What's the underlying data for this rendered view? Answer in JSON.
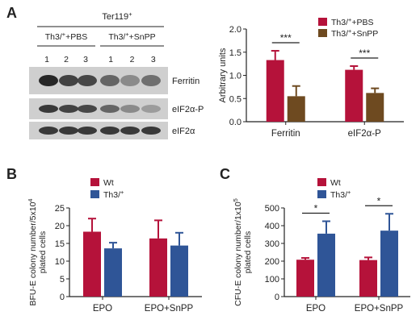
{
  "colors": {
    "red": "#b5123a",
    "brown": "#6e4a20",
    "blue": "#2f5597",
    "axis": "#222222"
  },
  "panelA": {
    "label": "A",
    "blot": {
      "header": "Ter119",
      "header_sup": "+",
      "groups": [
        {
          "pre": "Th3/",
          "sup": "+",
          "post": "+PBS",
          "lanes": [
            "1",
            "2",
            "3"
          ]
        },
        {
          "pre": "Th3/",
          "sup": "+",
          "post": "+SnPP",
          "lanes": [
            "1",
            "2",
            "3"
          ]
        }
      ],
      "rows": [
        {
          "label": "Ferritin",
          "intensity": [
            0.9,
            0.75,
            0.72,
            0.55,
            0.35,
            0.5
          ]
        },
        {
          "label": "eIF2α-P",
          "intensity": [
            0.8,
            0.75,
            0.72,
            0.55,
            0.35,
            0.25
          ]
        },
        {
          "label": "eIF2α",
          "intensity": [
            0.8,
            0.8,
            0.8,
            0.8,
            0.8,
            0.8
          ]
        }
      ]
    }
  },
  "panelB": {
    "label": "B"
  },
  "panelC": {
    "label": "C"
  },
  "chart_data": [
    {
      "id": "A-bar",
      "type": "bar",
      "categories": [
        "Ferritin",
        "eIF2α-P"
      ],
      "series": [
        {
          "name_pre": "Th3/",
          "name_sup": "+",
          "name_post": "+PBS",
          "color": "#b5123a",
          "values": [
            1.33,
            1.12
          ],
          "errors": [
            0.2,
            0.08
          ]
        },
        {
          "name_pre": "Th3/",
          "name_sup": "+",
          "name_post": "+SnPP",
          "color": "#6e4a20",
          "values": [
            0.55,
            0.62
          ],
          "errors": [
            0.22,
            0.1
          ]
        }
      ],
      "ylabel": "Arbitrary units",
      "ylim": [
        0,
        2.0
      ],
      "yticks": [
        "0.0",
        "0.5",
        "1.0",
        "1.5",
        "2.0"
      ],
      "significance": [
        "***",
        "***"
      ],
      "legend": "top-right"
    },
    {
      "id": "B-bar",
      "type": "bar",
      "categories": [
        "EPO",
        "EPO+SnPP"
      ],
      "series": [
        {
          "name_pre": "Wt",
          "name_sup": "",
          "name_post": "",
          "color": "#b5123a",
          "values": [
            18.3,
            16.4
          ],
          "errors": [
            3.7,
            5.1
          ]
        },
        {
          "name_pre": "Th3/",
          "name_sup": "+",
          "name_post": "",
          "color": "#2f5597",
          "values": [
            13.6,
            14.4
          ],
          "errors": [
            1.6,
            3.6
          ]
        }
      ],
      "ylabel_lines": [
        {
          "pre": "BFU-E colony number/5x10",
          "sup": "4"
        },
        {
          "pre": "plated cells",
          "sup": ""
        }
      ],
      "ylim": [
        0,
        25
      ],
      "yticks": [
        "0",
        "5",
        "10",
        "15",
        "20",
        "25"
      ],
      "significance": [
        "",
        ""
      ],
      "legend": "top-center"
    },
    {
      "id": "C-bar",
      "type": "bar",
      "categories": [
        "EPO",
        "EPO+SnPP"
      ],
      "series": [
        {
          "name_pre": "Wt",
          "name_sup": "",
          "name_post": "",
          "color": "#b5123a",
          "values": [
            208,
            206
          ],
          "errors": [
            10,
            15
          ]
        },
        {
          "name_pre": "Th3/",
          "name_sup": "+",
          "name_post": "",
          "color": "#2f5597",
          "values": [
            355,
            372
          ],
          "errors": [
            70,
            95
          ]
        }
      ],
      "ylabel_lines": [
        {
          "pre": "CFU-E colony number/1x10",
          "sup": "5"
        },
        {
          "pre": "plated cells",
          "sup": ""
        }
      ],
      "ylim": [
        0,
        500
      ],
      "yticks": [
        "0",
        "100",
        "200",
        "300",
        "400",
        "500"
      ],
      "significance": [
        "*",
        "*"
      ],
      "legend": "top-center"
    }
  ]
}
